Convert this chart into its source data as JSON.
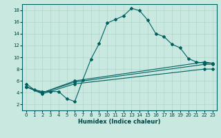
{
  "title": "",
  "xlabel": "Humidex (Indice chaleur)",
  "background_color": "#c8e8e0",
  "grid_color": "#b0d4cc",
  "line_color": "#006060",
  "xlim": [
    -0.5,
    23.5
  ],
  "ylim": [
    1,
    19
  ],
  "xticks": [
    0,
    1,
    2,
    3,
    4,
    5,
    6,
    7,
    8,
    9,
    10,
    11,
    12,
    13,
    14,
    15,
    16,
    17,
    18,
    19,
    20,
    21,
    22,
    23
  ],
  "yticks": [
    2,
    4,
    6,
    8,
    10,
    12,
    14,
    16,
    18
  ],
  "lines": [
    {
      "x": [
        0,
        1,
        2,
        3,
        4,
        5,
        6,
        7,
        8,
        9,
        10,
        11,
        12,
        13,
        14,
        15,
        16,
        17,
        18,
        19,
        20,
        21,
        22,
        23
      ],
      "y": [
        5.5,
        4.5,
        4.2,
        4.2,
        4.2,
        3.0,
        2.5,
        6.2,
        9.7,
        12.3,
        15.8,
        16.4,
        17.0,
        18.3,
        17.9,
        16.3,
        14.0,
        13.5,
        12.2,
        11.6,
        9.8,
        9.2,
        9.0,
        9.0
      ]
    },
    {
      "x": [
        0,
        2,
        6,
        22,
        23
      ],
      "y": [
        5.0,
        4.0,
        6.0,
        9.2,
        9.0
      ]
    },
    {
      "x": [
        0,
        2,
        6,
        22,
        23
      ],
      "y": [
        5.0,
        4.0,
        5.8,
        8.8,
        8.8
      ]
    },
    {
      "x": [
        0,
        2,
        6,
        22,
        23
      ],
      "y": [
        5.0,
        3.8,
        5.5,
        8.0,
        8.0
      ]
    }
  ]
}
